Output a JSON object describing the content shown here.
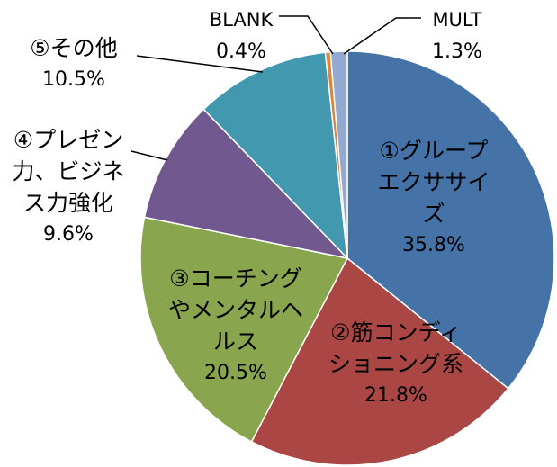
{
  "chart_data": {
    "type": "pie",
    "categories": [
      "①グループエクササイズ",
      "②筋コンディショニング系",
      "③コーチングやメンタルヘルス",
      "④プレゼン力、ビジネス力強化",
      "⑤その他",
      "BLANK",
      "MULT"
    ],
    "values": [
      35.8,
      21.8,
      20.5,
      9.6,
      10.5,
      0.4,
      1.3
    ],
    "value_labels": [
      "35.8%",
      "21.8%",
      "20.5%",
      "9.6%",
      "10.5%",
      "0.4%",
      "1.3%"
    ],
    "colors": [
      "#4572a7",
      "#aa4643",
      "#89a54e",
      "#71588f",
      "#4198af",
      "#db843d",
      "#93a9cf"
    ]
  }
}
